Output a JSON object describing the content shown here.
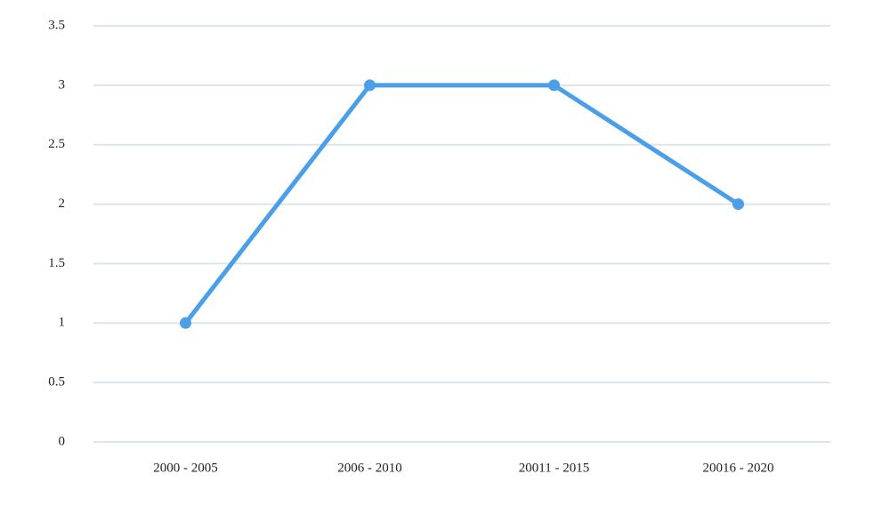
{
  "chart_data": {
    "type": "line",
    "categories": [
      "2000 - 2005",
      "2006 - 2010",
      "20011 - 2015",
      "20016 - 2020"
    ],
    "values": [
      1,
      3,
      3,
      2
    ],
    "color": "#4a9fe8",
    "ylim": [
      0,
      3.5
    ],
    "yticks": [
      0,
      0.5,
      1,
      1.5,
      2,
      2.5,
      3,
      3.5
    ],
    "grid": true
  }
}
